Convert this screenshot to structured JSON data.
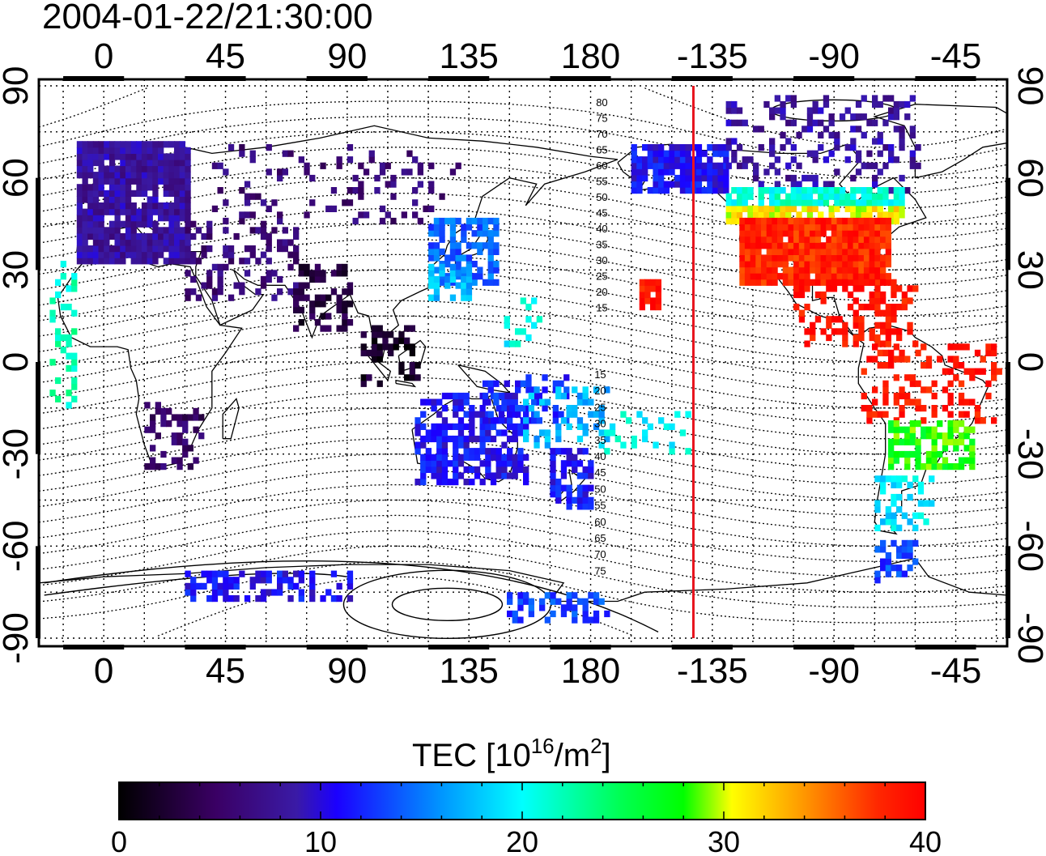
{
  "timestamp": "2004-01-22/21:30:00",
  "axes": {
    "lon_ticks": [
      {
        "lon": 0,
        "label": "0"
      },
      {
        "lon": 45,
        "label": "45"
      },
      {
        "lon": 90,
        "label": "90"
      },
      {
        "lon": 135,
        "label": "135"
      },
      {
        "lon": 180,
        "label": "180"
      },
      {
        "lon": 225,
        "label": "-135"
      },
      {
        "lon": 270,
        "label": "-90"
      },
      {
        "lon": 315,
        "label": "-45"
      }
    ],
    "lat_ticks": [
      {
        "lat": 90,
        "label": "90"
      },
      {
        "lat": 60,
        "label": "60"
      },
      {
        "lat": 30,
        "label": "30"
      },
      {
        "lat": 0,
        "label": "0"
      },
      {
        "lat": -30,
        "label": "-30"
      },
      {
        "lat": -60,
        "label": "-60"
      },
      {
        "lat": -90,
        "label": "-90"
      }
    ],
    "lon_range": [
      -24,
      334
    ],
    "lat_range": [
      -90,
      90
    ],
    "grid": "dotted every 15 degrees"
  },
  "terminator_longitude": 218,
  "terminator_color": "#e8141e",
  "contour_labels_north": [
    "80",
    "75",
    "70",
    "65",
    "60",
    "55",
    "50",
    "45",
    "40",
    "35",
    "30",
    "25",
    "20",
    "15"
  ],
  "contour_labels_south": [
    "15",
    "20",
    "25",
    "30",
    "35",
    "40",
    "45",
    "50",
    "55",
    "60",
    "65",
    "70",
    "75"
  ],
  "colorbar": {
    "title_prefix": "TEC  [10",
    "title_sup1": "16",
    "title_mid": "/m",
    "title_sup2": "2",
    "title_suffix": "]",
    "min": 0,
    "max": 40,
    "tick_labels": [
      {
        "value": 0,
        "label": "0"
      },
      {
        "value": 10,
        "label": "10"
      },
      {
        "value": 20,
        "label": "20"
      },
      {
        "value": 30,
        "label": "30"
      },
      {
        "value": 40,
        "label": "40"
      }
    ]
  },
  "tec_regions": [
    {
      "name": "europe",
      "lon": [
        -10,
        30
      ],
      "lat": [
        32,
        70
      ],
      "tec": 8,
      "density": 0.9
    },
    {
      "name": "north-africa-mideast",
      "lon": [
        30,
        70
      ],
      "lat": [
        20,
        45
      ],
      "tec": 6,
      "density": 0.3
    },
    {
      "name": "russia",
      "lon": [
        40,
        130
      ],
      "lat": [
        45,
        70
      ],
      "tec": 6,
      "density": 0.15
    },
    {
      "name": "india",
      "lon": [
        70,
        90
      ],
      "lat": [
        10,
        30
      ],
      "tec": 3,
      "density": 0.4
    },
    {
      "name": "se-asia",
      "lon": [
        95,
        115
      ],
      "lat": [
        -8,
        10
      ],
      "tec": 2,
      "density": 0.4
    },
    {
      "name": "east-asia",
      "lon": [
        120,
        145
      ],
      "lat": [
        25,
        45
      ],
      "tec": 14,
      "density": 0.7
    },
    {
      "name": "japan-south",
      "lon": [
        120,
        135
      ],
      "lat": [
        20,
        30
      ],
      "tec": 17,
      "density": 0.6
    },
    {
      "name": "pacific-islands",
      "lon": [
        148,
        160
      ],
      "lat": [
        5,
        20
      ],
      "tec": 20,
      "density": 0.3
    },
    {
      "name": "africa-south",
      "lon": [
        15,
        35
      ],
      "lat": [
        -35,
        -15
      ],
      "tec": 5,
      "density": 0.4
    },
    {
      "name": "australia",
      "lon": [
        115,
        155
      ],
      "lat": [
        -40,
        -12
      ],
      "tec": 11,
      "density": 0.6
    },
    {
      "name": "indonesia-east",
      "lon": [
        140,
        170
      ],
      "lat": [
        -20,
        -5
      ],
      "tec": 12,
      "density": 0.4
    },
    {
      "name": "new-zealand",
      "lon": [
        165,
        180
      ],
      "lat": [
        -48,
        -30
      ],
      "tec": 11,
      "density": 0.6
    },
    {
      "name": "tasman",
      "lon": [
        155,
        185
      ],
      "lat": [
        -28,
        -10
      ],
      "tec": 17,
      "density": 0.3
    },
    {
      "name": "antarctica-west",
      "lon": [
        30,
        90
      ],
      "lat": [
        -78,
        -70
      ],
      "tec": 11,
      "density": 0.5
    },
    {
      "name": "antarctica-ross",
      "lon": [
        145,
        185
      ],
      "lat": [
        -85,
        -76
      ],
      "tec": 13,
      "density": 0.4
    },
    {
      "name": "alaska",
      "lon": [
        195,
        230
      ],
      "lat": [
        55,
        70
      ],
      "tec": 11,
      "density": 0.8
    },
    {
      "name": "canada-north",
      "lon": [
        230,
        300
      ],
      "lat": [
        55,
        85
      ],
      "tec": 8,
      "density": 0.3
    },
    {
      "name": "canada-south",
      "lon": [
        230,
        295
      ],
      "lat": [
        45,
        55
      ],
      "tec": 25,
      "density": 0.85
    },
    {
      "name": "usa",
      "lon": [
        235,
        290
      ],
      "lat": [
        25,
        45
      ],
      "tec": 38,
      "density": 0.95
    },
    {
      "name": "hawaii",
      "lon": [
        198,
        205
      ],
      "lat": [
        17,
        25
      ],
      "tec": 39,
      "density": 0.8
    },
    {
      "name": "mexico-caribbean",
      "lon": [
        255,
        300
      ],
      "lat": [
        5,
        25
      ],
      "tec": 39,
      "density": 0.35
    },
    {
      "name": "south-america-north",
      "lon": [
        280,
        330
      ],
      "lat": [
        -20,
        5
      ],
      "tec": 39,
      "density": 0.3
    },
    {
      "name": "brazil-south",
      "lon": [
        290,
        320
      ],
      "lat": [
        -35,
        -20
      ],
      "tec": 28,
      "density": 0.6
    },
    {
      "name": "argentina",
      "lon": [
        285,
        305
      ],
      "lat": [
        -55,
        -38
      ],
      "tec": 19,
      "density": 0.5
    },
    {
      "name": "tierra-del-fuego",
      "lon": [
        285,
        300
      ],
      "lat": [
        -72,
        -60
      ],
      "tec": 13,
      "density": 0.5
    },
    {
      "name": "south-pacific-east",
      "lon": [
        185,
        215
      ],
      "lat": [
        -30,
        -15
      ],
      "tec": 20,
      "density": 0.25
    },
    {
      "name": "atlantic-canaries",
      "lon": [
        -20,
        -12
      ],
      "lat": [
        -15,
        32
      ],
      "tec": 22,
      "density": 0.25
    }
  ]
}
